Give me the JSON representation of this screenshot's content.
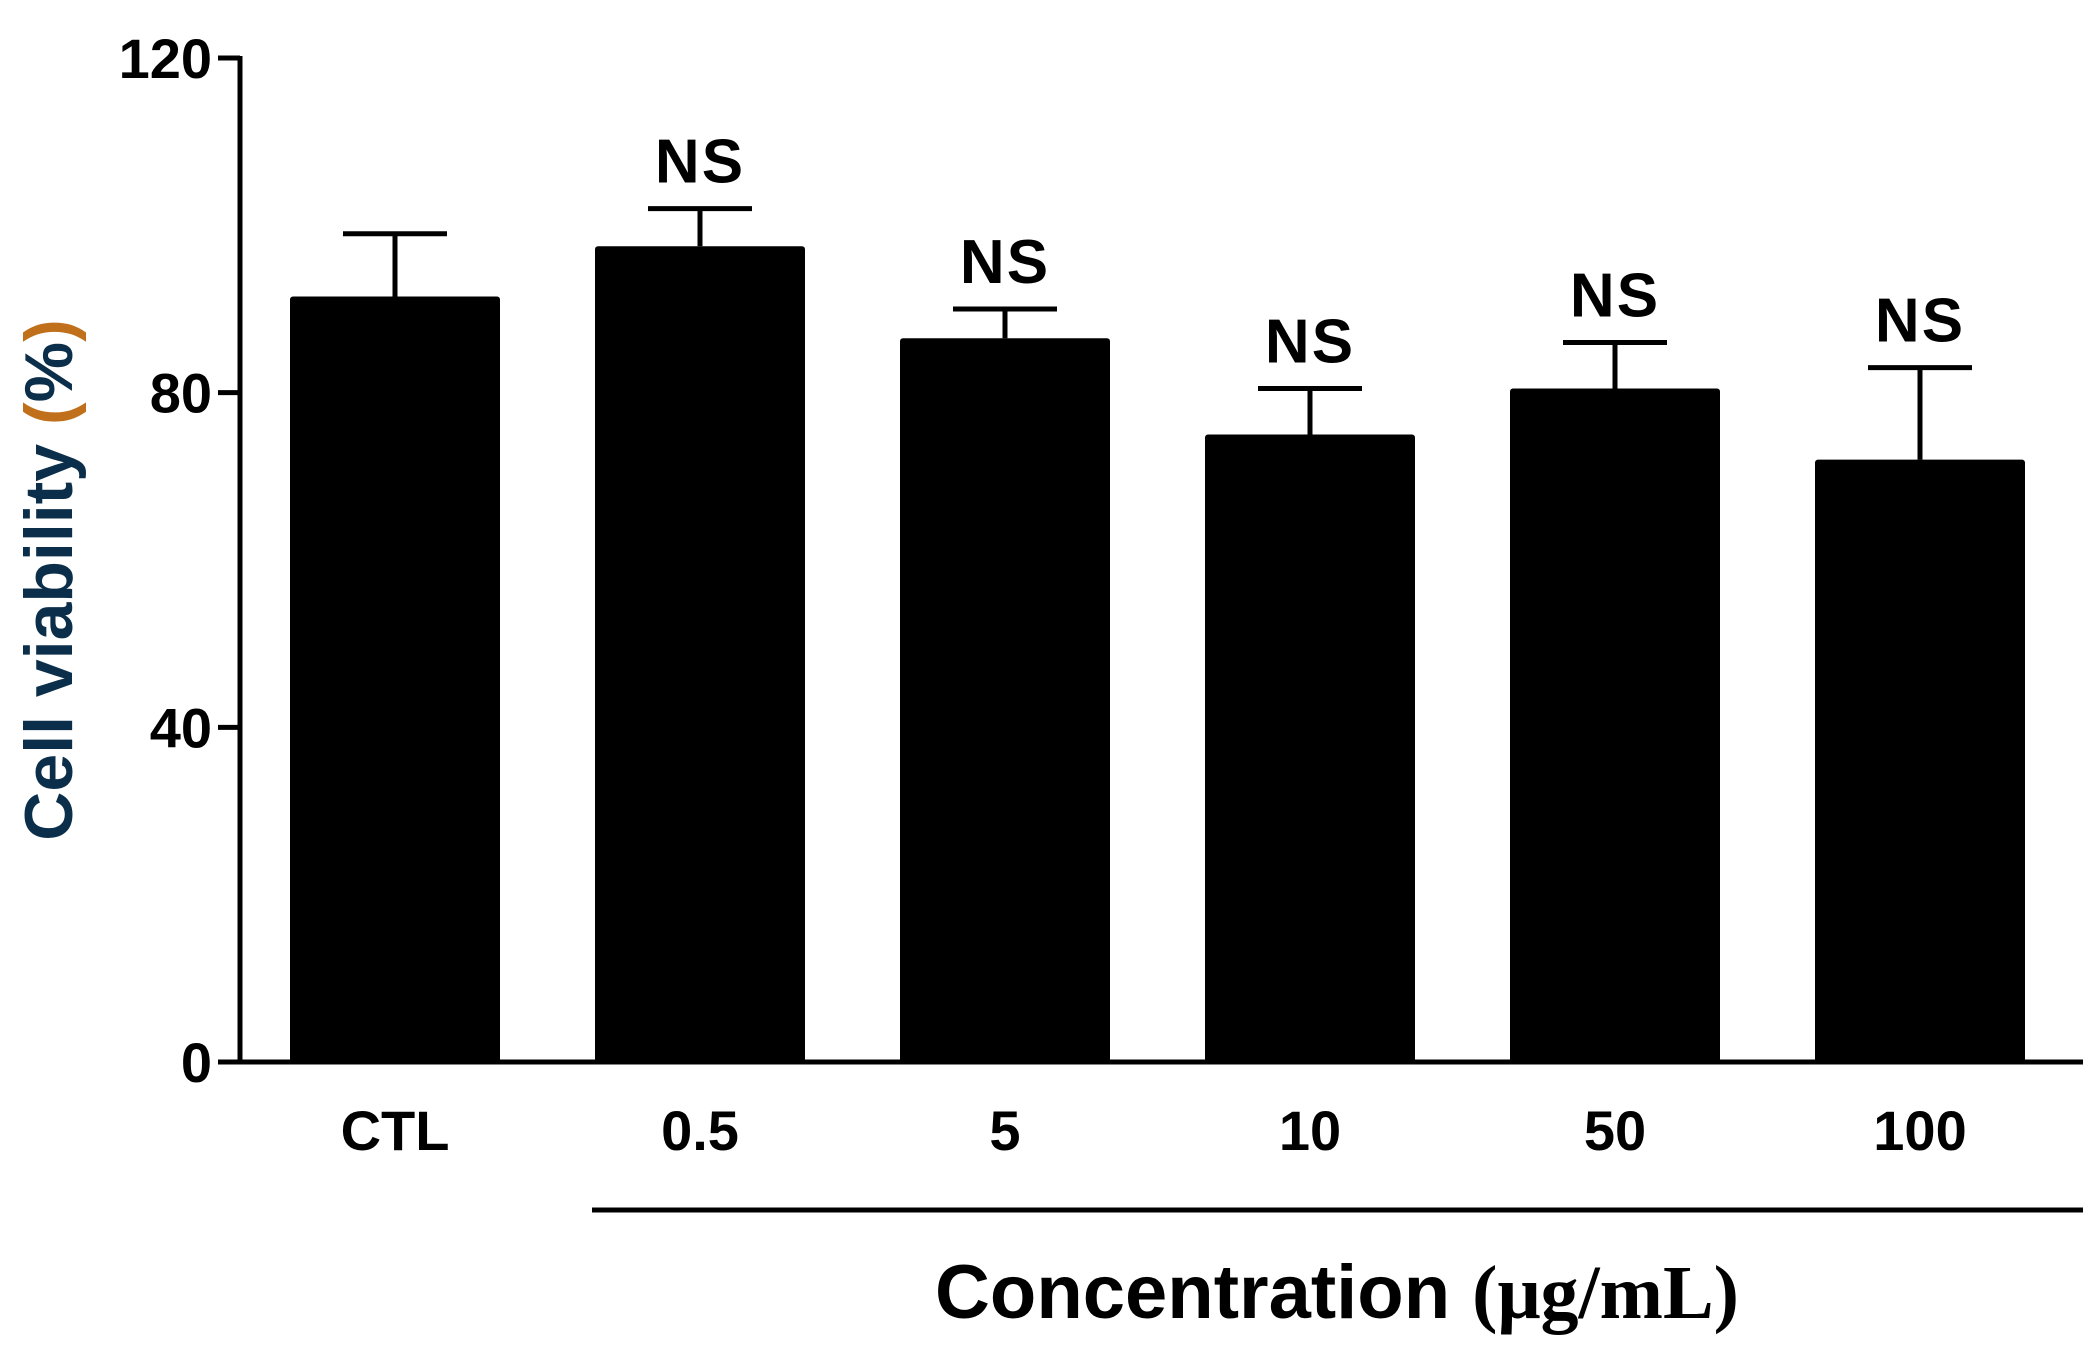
{
  "chart_data": {
    "type": "bar",
    "title": "",
    "ylabel": "Cell viability (%)",
    "xlabel_prefix": "Concentration",
    "xlabel_unit": "(μg/mL)",
    "ylim": [
      0,
      120
    ],
    "yticks": [
      "0",
      "40",
      "80",
      "120"
    ],
    "ytick_values": [
      0,
      40,
      80,
      120
    ],
    "categories": [
      "CTL",
      "0.5",
      "5",
      "10",
      "50",
      "100"
    ],
    "values": [
      91.5,
      97.5,
      86.5,
      75,
      80.5,
      72
    ],
    "errors": [
      7.5,
      4.5,
      3.5,
      5.5,
      5.5,
      11
    ],
    "annotations": [
      "",
      "NS",
      "NS",
      "NS",
      "NS",
      "NS"
    ],
    "bar_color": "#000000",
    "ylabel_colors": {
      "primary": "#0b2f4a",
      "parens": "#c0701a"
    },
    "grid": false
  }
}
